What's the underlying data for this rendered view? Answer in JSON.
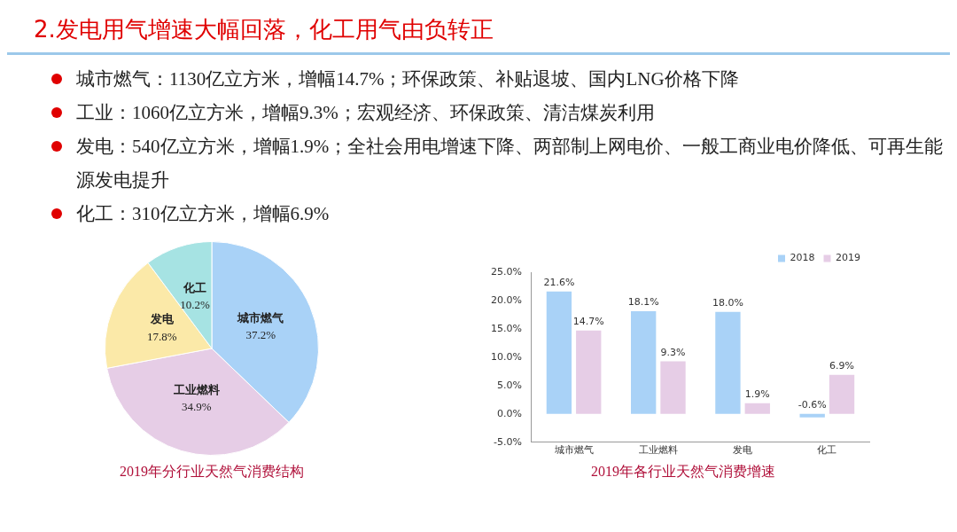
{
  "chart_data": [
    {
      "type": "other",
      "title": "2.发电用气增速大幅回落，化工用气由负转正",
      "annotations": [
        "城市燃气：1130亿立方米，增幅14.7%；环保政策、补贴退坡、国内LNG价格下降",
        "工业：1060亿立方米，增幅9.3%；宏观经济、环保政策、清洁煤炭利用",
        "发电：540亿立方米，增幅1.9%；全社会用电增速下降、两部制上网电价、一般工商业电价降低、可再生能源发电提升",
        "化工：310亿立方米，增幅6.9%"
      ]
    },
    {
      "type": "pie",
      "title": "2019年分行业天然气消费结构",
      "categories": [
        "城市燃气",
        "工业燃料",
        "发电",
        "化工"
      ],
      "values": [
        37.2,
        34.9,
        17.8,
        10.2
      ],
      "value_labels": [
        "37.2%",
        "34.9%",
        "17.8%",
        "10.2%"
      ],
      "colors": [
        "#a9d2f7",
        "#e6cde6",
        "#fbe9a8",
        "#a6e3e3"
      ],
      "legend": false
    },
    {
      "type": "bar",
      "title": "2019年各行业天然气消费增速",
      "categories": [
        "城市燃气",
        "工业燃料",
        "发电",
        "化工"
      ],
      "series": [
        {
          "name": "2018",
          "color": "#a9d2f7",
          "values": [
            21.6,
            18.1,
            18.0,
            -0.6
          ],
          "value_labels": [
            "21.6%",
            "18.1%",
            "18.0%",
            "-0.6%"
          ]
        },
        {
          "name": "2019",
          "color": "#e6cde6",
          "values": [
            14.7,
            9.3,
            1.9,
            6.9
          ],
          "value_labels": [
            "14.7%",
            "9.3%",
            "1.9%",
            "6.9%"
          ]
        }
      ],
      "ylim": [
        -5,
        25
      ],
      "yticks": [
        {
          "value": -5,
          "label": "-5.0%"
        },
        {
          "value": 0,
          "label": "0.0%"
        },
        {
          "value": 5,
          "label": "5.0%"
        },
        {
          "value": 10,
          "label": "10.0%"
        },
        {
          "value": 15,
          "label": "15.0%"
        },
        {
          "value": 20,
          "label": "20.0%"
        },
        {
          "value": 25,
          "label": "25.0%"
        }
      ],
      "grid": false,
      "legend": "top right"
    }
  ]
}
